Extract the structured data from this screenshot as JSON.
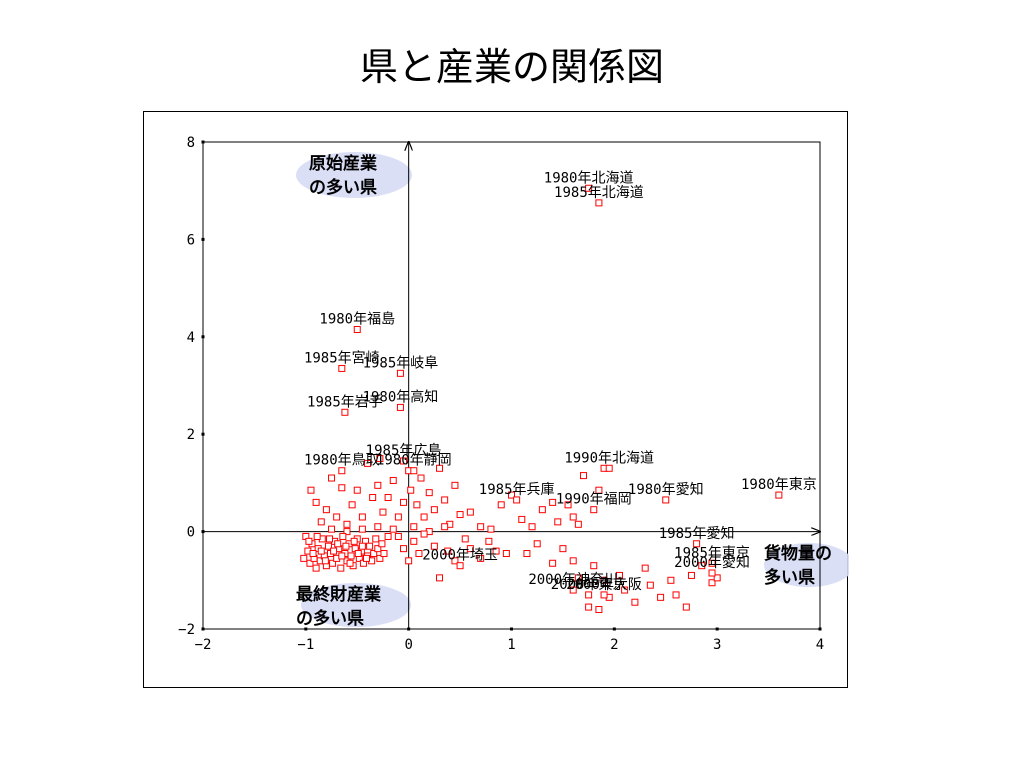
{
  "slide": {
    "title": "県と産業の関係図"
  },
  "colors": {
    "point": "#ff0000",
    "axis": "#000000",
    "highlight": "#d6dcf5"
  },
  "chart_data": {
    "type": "scatter",
    "title": "",
    "xlabel": "",
    "ylabel": "",
    "xlim": [
      -2,
      4
    ],
    "ylim": [
      -2,
      8
    ],
    "xticks": [
      "−2",
      "−1",
      "0",
      "1",
      "2",
      "3",
      "4"
    ],
    "yticks": [
      "−2",
      "0",
      "2",
      "4",
      "6",
      "8"
    ],
    "grid": false,
    "quadrant_labels": [
      {
        "lines": [
          "原始産業",
          "の多い県"
        ],
        "region": "top-left"
      },
      {
        "lines": [
          "最終財産業",
          "の多い県"
        ],
        "region": "bottom-left"
      },
      {
        "lines": [
          "貨物量の",
          "多い県"
        ],
        "region": "right"
      }
    ],
    "labeled_points": [
      {
        "label": "1980年北海道",
        "x": 1.75,
        "y": 7.05
      },
      {
        "label": "1985年北海道",
        "x": 1.85,
        "y": 6.75
      },
      {
        "label": "1980年福島",
        "x": -0.5,
        "y": 4.15
      },
      {
        "label": "1985年宮崎",
        "x": -0.65,
        "y": 3.35
      },
      {
        "label": "1985年岐阜",
        "x": -0.08,
        "y": 3.25
      },
      {
        "label": "1980年高知",
        "x": -0.08,
        "y": 2.55
      },
      {
        "label": "1985年岩手",
        "x": -0.62,
        "y": 2.45
      },
      {
        "label": "1985年広島",
        "x": -0.05,
        "y": 1.45
      },
      {
        "label": "1980年静岡",
        "x": 0.05,
        "y": 1.25
      },
      {
        "label": "1980年鳥取",
        "x": -0.65,
        "y": 1.25
      },
      {
        "label": "1990年北海道",
        "x": 1.95,
        "y": 1.3
      },
      {
        "label": "1980年愛知",
        "x": 2.5,
        "y": 0.65
      },
      {
        "label": "1980年東京",
        "x": 3.6,
        "y": 0.75
      },
      {
        "label": "1985年兵庫",
        "x": 1.05,
        "y": 0.65
      },
      {
        "label": "1990年福岡",
        "x": 1.8,
        "y": 0.45
      },
      {
        "label": "1985年愛知",
        "x": 2.8,
        "y": -0.25
      },
      {
        "label": "1985年東京",
        "x": 2.95,
        "y": -0.65
      },
      {
        "label": "2000年愛知",
        "x": 2.95,
        "y": -0.85
      },
      {
        "label": "2000年埼玉",
        "x": 0.5,
        "y": -0.7
      },
      {
        "label": "2000年神奈川",
        "x": 1.6,
        "y": -1.2
      },
      {
        "label": "2000年東京",
        "x": 1.75,
        "y": -1.3
      },
      {
        "label": "2000年大阪",
        "x": 1.9,
        "y": -1.3
      }
    ],
    "points": [
      {
        "x": -0.95,
        "y": 0.85
      },
      {
        "x": -0.9,
        "y": 0.6
      },
      {
        "x": -0.85,
        "y": 0.2
      },
      {
        "x": -0.8,
        "y": 0.45
      },
      {
        "x": -0.75,
        "y": 1.1
      },
      {
        "x": -0.7,
        "y": 0.3
      },
      {
        "x": -0.65,
        "y": 0.9
      },
      {
        "x": -0.6,
        "y": 0.15
      },
      {
        "x": -0.55,
        "y": 0.55
      },
      {
        "x": -0.5,
        "y": 0.85
      },
      {
        "x": -0.45,
        "y": 0.3
      },
      {
        "x": -0.4,
        "y": 1.4
      },
      {
        "x": -0.35,
        "y": 0.7
      },
      {
        "x": -0.3,
        "y": 0.95
      },
      {
        "x": -0.28,
        "y": 1.5
      },
      {
        "x": -0.25,
        "y": 0.4
      },
      {
        "x": -0.2,
        "y": 0.7
      },
      {
        "x": -0.15,
        "y": 1.05
      },
      {
        "x": -0.1,
        "y": 0.3
      },
      {
        "x": -0.05,
        "y": 0.6
      },
      {
        "x": 0.0,
        "y": 1.25
      },
      {
        "x": 0.02,
        "y": 0.85
      },
      {
        "x": 0.08,
        "y": 0.55
      },
      {
        "x": 0.12,
        "y": 1.1
      },
      {
        "x": 0.15,
        "y": 0.3
      },
      {
        "x": 0.2,
        "y": 0.8
      },
      {
        "x": 0.25,
        "y": 0.45
      },
      {
        "x": 0.3,
        "y": 1.3
      },
      {
        "x": 0.35,
        "y": 0.65
      },
      {
        "x": 0.4,
        "y": 0.15
      },
      {
        "x": 0.45,
        "y": 0.95
      },
      {
        "x": 0.5,
        "y": 0.35
      },
      {
        "x": -0.45,
        "y": 0.05
      },
      {
        "x": -0.3,
        "y": 0.1
      },
      {
        "x": -0.15,
        "y": 0.05
      },
      {
        "x": 0.05,
        "y": 0.1
      },
      {
        "x": 0.2,
        "y": 0.0
      },
      {
        "x": 0.35,
        "y": 0.1
      },
      {
        "x": -0.6,
        "y": 0.0
      },
      {
        "x": -0.75,
        "y": 0.05
      },
      {
        "x": -1.0,
        "y": -0.1
      },
      {
        "x": -0.98,
        "y": -0.4
      },
      {
        "x": -0.96,
        "y": -0.65
      },
      {
        "x": -0.94,
        "y": -0.25
      },
      {
        "x": -0.92,
        "y": -0.55
      },
      {
        "x": -0.9,
        "y": -0.75
      },
      {
        "x": -0.88,
        "y": -0.35
      },
      {
        "x": -0.86,
        "y": -0.6
      },
      {
        "x": -0.84,
        "y": -0.15
      },
      {
        "x": -0.82,
        "y": -0.5
      },
      {
        "x": -0.8,
        "y": -0.7
      },
      {
        "x": -0.78,
        "y": -0.3
      },
      {
        "x": -0.76,
        "y": -0.45
      },
      {
        "x": -0.74,
        "y": -0.65
      },
      {
        "x": -0.72,
        "y": -0.2
      },
      {
        "x": -0.7,
        "y": -0.55
      },
      {
        "x": -0.68,
        "y": -0.35
      },
      {
        "x": -0.66,
        "y": -0.75
      },
      {
        "x": -0.64,
        "y": -0.1
      },
      {
        "x": -0.62,
        "y": -0.45
      },
      {
        "x": -0.6,
        "y": -0.6
      },
      {
        "x": -0.58,
        "y": -0.25
      },
      {
        "x": -0.56,
        "y": -0.5
      },
      {
        "x": -0.54,
        "y": -0.7
      },
      {
        "x": -0.52,
        "y": -0.35
      },
      {
        "x": -0.5,
        "y": -0.15
      },
      {
        "x": -0.48,
        "y": -0.55
      },
      {
        "x": -0.46,
        "y": -0.4
      },
      {
        "x": -0.44,
        "y": -0.65
      },
      {
        "x": -0.42,
        "y": -0.2
      },
      {
        "x": -0.4,
        "y": -0.5
      },
      {
        "x": -0.38,
        "y": -0.3
      },
      {
        "x": -0.36,
        "y": -0.6
      },
      {
        "x": -0.34,
        "y": -0.45
      },
      {
        "x": -0.32,
        "y": -0.15
      },
      {
        "x": -0.3,
        "y": -0.35
      },
      {
        "x": -0.28,
        "y": -0.55
      },
      {
        "x": -0.26,
        "y": -0.25
      },
      {
        "x": -0.24,
        "y": -0.45
      },
      {
        "x": -0.2,
        "y": -0.1
      },
      {
        "x": -1.02,
        "y": -0.55
      },
      {
        "x": -0.97,
        "y": -0.2
      },
      {
        "x": -0.93,
        "y": -0.45
      },
      {
        "x": -0.89,
        "y": -0.1
      },
      {
        "x": -0.85,
        "y": -0.4
      },
      {
        "x": -0.81,
        "y": -0.6
      },
      {
        "x": -0.77,
        "y": -0.15
      },
      {
        "x": -0.73,
        "y": -0.4
      },
      {
        "x": -0.69,
        "y": -0.25
      },
      {
        "x": -0.65,
        "y": -0.5
      },
      {
        "x": -0.61,
        "y": -0.3
      },
      {
        "x": -0.57,
        "y": -0.65
      },
      {
        "x": -0.53,
        "y": -0.2
      },
      {
        "x": -0.49,
        "y": -0.45
      },
      {
        "x": -0.45,
        "y": -0.3
      },
      {
        "x": -0.41,
        "y": -0.55
      },
      {
        "x": -0.1,
        "y": -0.1
      },
      {
        "x": -0.05,
        "y": -0.35
      },
      {
        "x": 0.0,
        "y": -0.6
      },
      {
        "x": 0.05,
        "y": -0.2
      },
      {
        "x": 0.1,
        "y": -0.45
      },
      {
        "x": 0.15,
        "y": -0.05
      },
      {
        "x": 0.25,
        "y": -0.3
      },
      {
        "x": 0.3,
        "y": -0.95
      },
      {
        "x": 0.38,
        "y": -0.4
      },
      {
        "x": 0.45,
        "y": -0.6
      },
      {
        "x": 0.55,
        "y": -0.15
      },
      {
        "x": 0.6,
        "y": -0.35
      },
      {
        "x": 0.7,
        "y": -0.55
      },
      {
        "x": 0.78,
        "y": -0.2
      },
      {
        "x": 0.85,
        "y": -0.4
      },
      {
        "x": 0.95,
        "y": -0.45
      },
      {
        "x": 0.6,
        "y": 0.4
      },
      {
        "x": 0.7,
        "y": 0.1
      },
      {
        "x": 0.8,
        "y": 0.05
      },
      {
        "x": 0.9,
        "y": 0.55
      },
      {
        "x": 1.0,
        "y": 0.75
      },
      {
        "x": 1.1,
        "y": 0.25
      },
      {
        "x": 1.2,
        "y": 0.1
      },
      {
        "x": 1.3,
        "y": 0.45
      },
      {
        "x": 1.4,
        "y": 0.6
      },
      {
        "x": 1.45,
        "y": 0.2
      },
      {
        "x": 1.6,
        "y": 0.3
      },
      {
        "x": 1.7,
        "y": 1.15
      },
      {
        "x": 1.9,
        "y": 1.3
      },
      {
        "x": 1.85,
        "y": 0.85
      },
      {
        "x": 1.65,
        "y": 0.15
      },
      {
        "x": 1.55,
        "y": 0.55
      },
      {
        "x": 1.15,
        "y": -0.45
      },
      {
        "x": 1.25,
        "y": -0.25
      },
      {
        "x": 1.4,
        "y": -0.65
      },
      {
        "x": 1.5,
        "y": -0.35
      },
      {
        "x": 1.6,
        "y": -0.6
      },
      {
        "x": 1.65,
        "y": -0.95
      },
      {
        "x": 1.8,
        "y": -0.7
      },
      {
        "x": 1.9,
        "y": -1.0
      },
      {
        "x": 1.95,
        "y": -1.35
      },
      {
        "x": 2.05,
        "y": -0.9
      },
      {
        "x": 2.1,
        "y": -1.2
      },
      {
        "x": 2.2,
        "y": -1.45
      },
      {
        "x": 2.3,
        "y": -0.75
      },
      {
        "x": 2.35,
        "y": -1.1
      },
      {
        "x": 2.45,
        "y": -1.35
      },
      {
        "x": 2.55,
        "y": -1.0
      },
      {
        "x": 2.6,
        "y": -1.3
      },
      {
        "x": 2.7,
        "y": -1.55
      },
      {
        "x": 2.75,
        "y": -0.9
      },
      {
        "x": 2.85,
        "y": -0.7
      },
      {
        "x": 2.95,
        "y": -1.05
      },
      {
        "x": 3.0,
        "y": -0.95
      },
      {
        "x": 1.75,
        "y": -1.55
      },
      {
        "x": 1.85,
        "y": -1.6
      }
    ]
  }
}
